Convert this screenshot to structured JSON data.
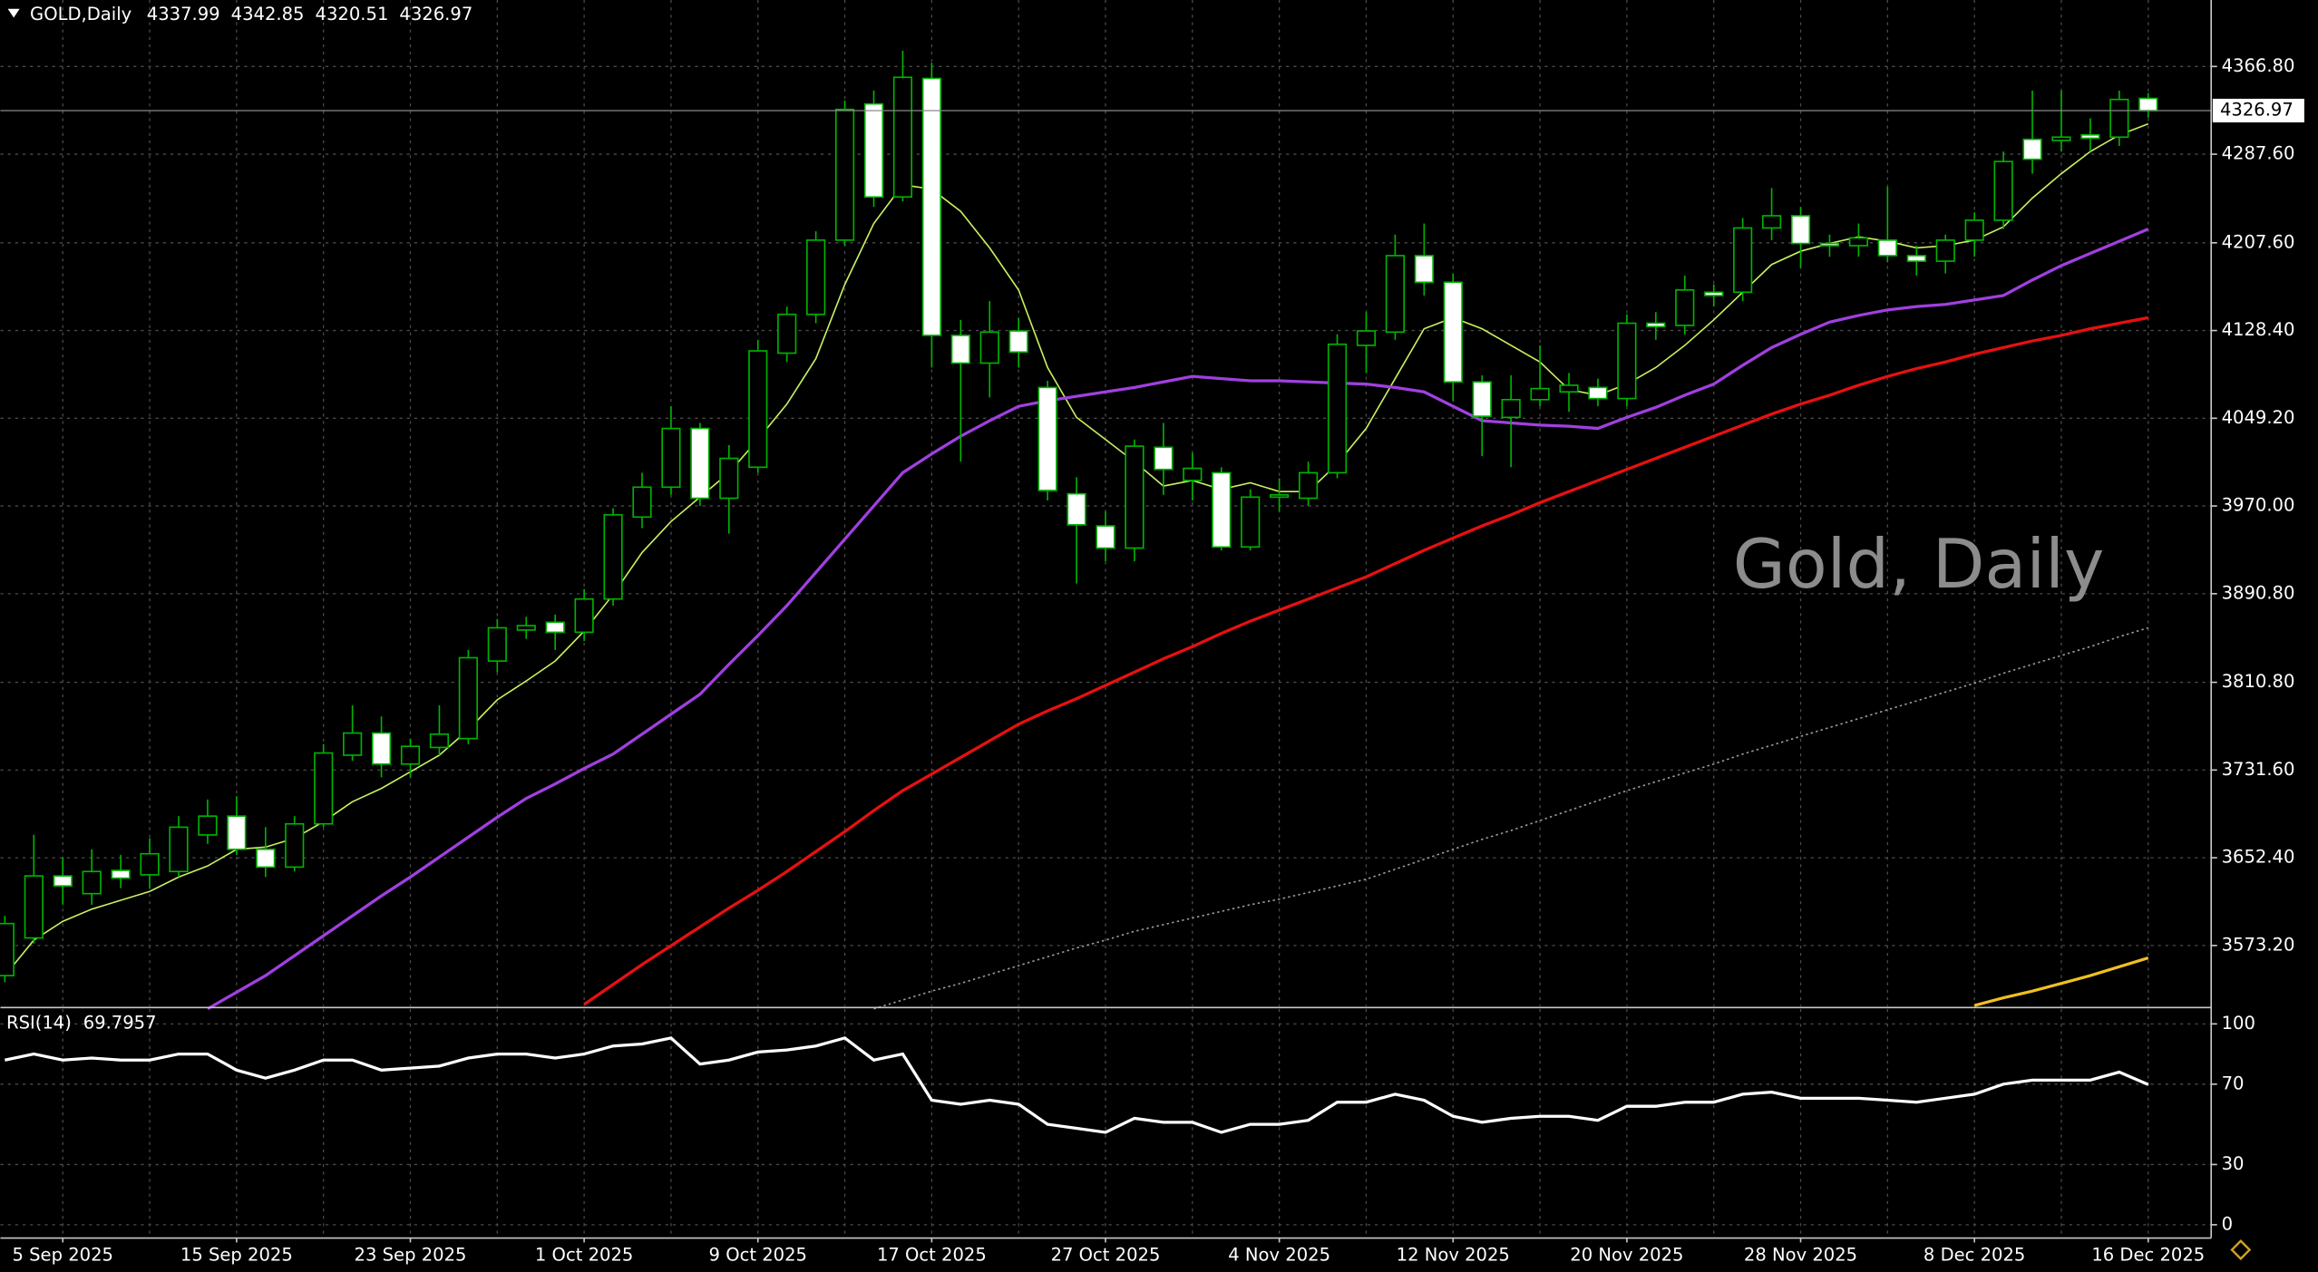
{
  "chart_data": {
    "type": "candlestick",
    "symbol": "GOLD,Daily",
    "watermark": "Gold, Daily",
    "categories": [
      null,
      null,
      "5 Sep 2025",
      null,
      null,
      null,
      null,
      null,
      "15 Sep 2025",
      null,
      null,
      null,
      null,
      null,
      "23 Sep 2025",
      null,
      null,
      null,
      null,
      null,
      "1 Oct 2025",
      null,
      null,
      null,
      null,
      null,
      "9 Oct 2025",
      null,
      null,
      null,
      null,
      null,
      "17 Oct 2025",
      null,
      null,
      null,
      null,
      null,
      "27 Oct 2025",
      null,
      null,
      null,
      null,
      null,
      "4 Nov 2025",
      null,
      null,
      null,
      null,
      null,
      "12 Nov 2025",
      null,
      null,
      null,
      null,
      null,
      "20 Nov 2025",
      null,
      null,
      null,
      null,
      null,
      "28 Nov 2025",
      null,
      null,
      null,
      null,
      null,
      "8 Dec 2025",
      null,
      null,
      null,
      null,
      null,
      "16 Dec 2025"
    ],
    "open": [
      3546,
      3580,
      3636,
      3620,
      3641,
      3637,
      3640,
      3673,
      3690,
      3660,
      3644,
      3683,
      3745,
      3765,
      3737,
      3752,
      3760,
      3830,
      3858,
      3865,
      3856,
      3886,
      3960,
      3987,
      4040,
      3977,
      4005,
      4108,
      4143,
      4210,
      4333,
      4249,
      4356,
      4124,
      4099,
      4128,
      4077,
      3981,
      3952,
      3932,
      4023,
      3993,
      4000,
      3933,
      3978,
      3977,
      4000,
      4115,
      4127,
      4196,
      4172,
      4082,
      4050,
      4066,
      4073,
      4077,
      4067,
      4135,
      4133,
      4163,
      4163,
      4221,
      4232,
      4207,
      4205,
      4210,
      4196,
      4191,
      4210,
      4228,
      4301,
      4300,
      4305,
      4303,
      4337.99
    ],
    "high": [
      3600,
      3673,
      3653,
      3660,
      3655,
      3670,
      3690,
      3705,
      3708,
      3680,
      3690,
      3755,
      3790,
      3780,
      3760,
      3790,
      3840,
      3868,
      3870,
      3872,
      3895,
      3968,
      4000,
      4060,
      4045,
      4025,
      4120,
      4150,
      4218,
      4336,
      4345,
      4381,
      4370,
      4138,
      4155,
      4140,
      4083,
      3996,
      3965,
      4030,
      4045,
      4018,
      4005,
      3985,
      3995,
      4010,
      4125,
      4145,
      4215,
      4225,
      4180,
      4088,
      4088,
      4115,
      4090,
      4085,
      4143,
      4145,
      4178,
      4170,
      4230,
      4257,
      4240,
      4215,
      4225,
      4258,
      4205,
      4215,
      4235,
      4290,
      4345,
      4345,
      4320,
      4345,
      4342.85
    ],
    "low": [
      3540,
      3575,
      3610,
      3610,
      3625,
      3625,
      3635,
      3665,
      3655,
      3635,
      3640,
      3680,
      3740,
      3725,
      3725,
      3745,
      3755,
      3820,
      3850,
      3840,
      3848,
      3880,
      3950,
      3980,
      3970,
      3945,
      4000,
      4100,
      4135,
      4205,
      4240,
      4245,
      4095,
      4010,
      4068,
      4095,
      3975,
      3900,
      3920,
      3920,
      3980,
      3975,
      3930,
      3930,
      3965,
      3970,
      3995,
      4090,
      4120,
      4160,
      4065,
      4015,
      4005,
      4060,
      4055,
      4060,
      4060,
      4120,
      4125,
      4150,
      4155,
      4210,
      4185,
      4195,
      4195,
      4190,
      4178,
      4180,
      4195,
      4220,
      4270,
      4290,
      4290,
      4295,
      4320.51
    ],
    "close": [
      3593,
      3636,
      3627,
      3640,
      3634,
      3656,
      3680,
      3690,
      3660,
      3644,
      3683,
      3747,
      3765,
      3737,
      3753,
      3764,
      3833,
      3860,
      3862,
      3856,
      3886,
      3962,
      3987,
      4040,
      3977,
      4013,
      4110,
      4143,
      4210,
      4328,
      4249,
      4357,
      4124,
      4099,
      4127,
      4109,
      3984,
      3953,
      3932,
      4024,
      4003,
      4004,
      3933,
      3978,
      3980,
      4000,
      4116,
      4128,
      4196,
      4172,
      4082,
      4051,
      4066,
      4076,
      4079,
      4067,
      4135,
      4132,
      4165,
      4160,
      4221,
      4232,
      4207,
      4205,
      4212,
      4196,
      4191,
      4210,
      4228,
      4281,
      4283,
      4303,
      4302,
      4337,
      4326.97
    ],
    "up_color": "#00b400",
    "down_color": "#ffffff",
    "ylim": [
      3518.5,
      4426.8
    ],
    "yticks": [
      {
        "value": 4366.8,
        "label": "4366.80"
      },
      {
        "value": 4287.6,
        "label": "4287.60"
      },
      {
        "value": 4207.6,
        "label": "4207.60"
      },
      {
        "value": 4128.4,
        "label": "4128.40"
      },
      {
        "value": 4049.2,
        "label": "4049.20"
      },
      {
        "value": 3970,
        "label": "3970.00"
      },
      {
        "value": 3890.8,
        "label": "3890.80"
      },
      {
        "value": 3810.8,
        "label": "3810.80"
      },
      {
        "value": 3731.6,
        "label": "3731.60"
      },
      {
        "value": 3652.4,
        "label": "3652.40"
      },
      {
        "value": 3573.2,
        "label": "3573.20"
      }
    ],
    "grid": true,
    "series": [
      {
        "color": "#c8f060",
        "width": 1,
        "values": [
          3546,
          3578,
          3595,
          3606,
          3614,
          3622,
          3635,
          3645,
          3660,
          3662,
          3670,
          3685,
          3703,
          3715,
          3730,
          3745,
          3768,
          3795,
          3812,
          3830,
          3857,
          3890,
          3928,
          3956,
          3978,
          4000,
          4030,
          4062,
          4103,
          4170,
          4225,
          4260,
          4256,
          4236,
          4203,
          4165,
          4095,
          4050,
          4030,
          4010,
          3988,
          3993,
          3985,
          3991,
          3983,
          3983,
          4008,
          4040,
          4085,
          4130,
          4140,
          4130,
          4115,
          4100,
          4075,
          4070,
          4080,
          4095,
          4115,
          4138,
          4163,
          4188,
          4200,
          4207,
          4213,
          4209,
          4203,
          4205,
          4210,
          4222,
          4248,
          4270,
          4290,
          4305,
          4315
        ]
      },
      {
        "color": "#a040e0",
        "width": 2,
        "values": [
          null,
          null,
          null,
          null,
          null,
          null,
          null,
          3516,
          3531,
          3546,
          3564,
          3582,
          3600,
          3618,
          3635,
          3653,
          3671,
          3689,
          3706,
          3719,
          3733,
          3746,
          3764,
          3782,
          3800,
          3827,
          3853,
          3880,
          3910,
          3940,
          3970,
          4000,
          4017,
          4033,
          4047,
          4060,
          4065,
          4069,
          4073,
          4077,
          4082,
          4087,
          4085,
          4083,
          4083,
          4082,
          4081,
          4080,
          4077,
          4073,
          4060,
          4047,
          4045,
          4043,
          4042,
          4040,
          4050,
          4059,
          4070,
          4080,
          4097,
          4113,
          4125,
          4136,
          4142,
          4147,
          4150,
          4152,
          4156,
          4160,
          4174,
          4187,
          4198,
          4209,
          4220
        ]
      },
      {
        "color": "#e81010",
        "width": 2,
        "values": [
          null,
          null,
          null,
          null,
          null,
          null,
          null,
          null,
          null,
          null,
          null,
          null,
          null,
          null,
          null,
          null,
          null,
          null,
          null,
          null,
          3520,
          3538,
          3556,
          3573,
          3590,
          3607,
          3623,
          3640,
          3658,
          3676,
          3695,
          3713,
          3728,
          3743,
          3758,
          3773,
          3785,
          3796,
          3808,
          3820,
          3832,
          3843,
          3855,
          3866,
          3876,
          3886,
          3896,
          3906,
          3918,
          3930,
          3941,
          3952,
          3962,
          3973,
          3983,
          3993,
          4003,
          4013,
          4023,
          4033,
          4043,
          4053,
          4062,
          4070,
          4079,
          4087,
          4094,
          4100,
          4107,
          4113,
          4119,
          4124,
          4130,
          4135,
          4140
        ]
      },
      {
        "color": "#9a9a9a",
        "width": 1,
        "style": "dotted",
        "values": [
          null,
          null,
          null,
          null,
          null,
          null,
          null,
          null,
          null,
          null,
          null,
          null,
          null,
          null,
          null,
          null,
          null,
          null,
          null,
          null,
          null,
          null,
          null,
          null,
          null,
          null,
          null,
          null,
          null,
          null,
          3516,
          3524,
          3532,
          3539,
          3547,
          3555,
          3563,
          3571,
          3578,
          3586,
          3592,
          3598,
          3604,
          3610,
          3615,
          3621,
          3627,
          3633,
          3642,
          3651,
          3660,
          3669,
          3677,
          3686,
          3695,
          3704,
          3713,
          3721,
          3729,
          3737,
          3746,
          3754,
          3762,
          3770,
          3778,
          3786,
          3794,
          3802,
          3810,
          3819,
          3827,
          3835,
          3843,
          3852,
          3860
        ]
      },
      {
        "color": "#f0c020",
        "width": 2,
        "values": [
          null,
          null,
          null,
          null,
          null,
          null,
          null,
          null,
          null,
          null,
          null,
          null,
          null,
          null,
          null,
          null,
          null,
          null,
          null,
          null,
          null,
          null,
          null,
          null,
          null,
          null,
          null,
          null,
          null,
          null,
          null,
          null,
          null,
          null,
          null,
          null,
          null,
          null,
          null,
          null,
          null,
          null,
          null,
          null,
          null,
          null,
          null,
          null,
          null,
          null,
          null,
          null,
          null,
          null,
          null,
          null,
          null,
          null,
          null,
          null,
          null,
          null,
          null,
          null,
          null,
          null,
          null,
          null,
          3519,
          3526,
          3532,
          3539,
          3546,
          3554,
          3562
        ]
      }
    ],
    "rsi": {
      "label": "RSI(14)",
      "value": 69.7957,
      "color": "#ffffff",
      "ylim": [
        -6.6,
        107.4
      ],
      "yticks": [
        100,
        70,
        30,
        0
      ],
      "values": [
        82,
        85,
        82,
        83,
        82,
        82,
        85,
        85,
        77,
        73,
        77,
        82,
        82,
        77,
        78,
        79,
        83,
        85,
        85,
        83,
        85,
        89,
        90,
        93,
        80,
        82,
        86,
        87,
        89,
        93,
        82,
        85,
        62,
        60,
        62,
        60,
        50,
        48,
        46,
        53,
        51,
        51,
        46,
        50,
        50,
        52,
        61,
        61,
        65,
        62,
        54,
        51,
        53,
        54,
        54,
        52,
        59,
        59,
        61,
        61,
        65,
        66,
        63,
        63,
        63,
        62,
        61,
        63,
        65,
        70,
        72,
        72,
        72,
        76,
        69.8
      ]
    }
  }
}
